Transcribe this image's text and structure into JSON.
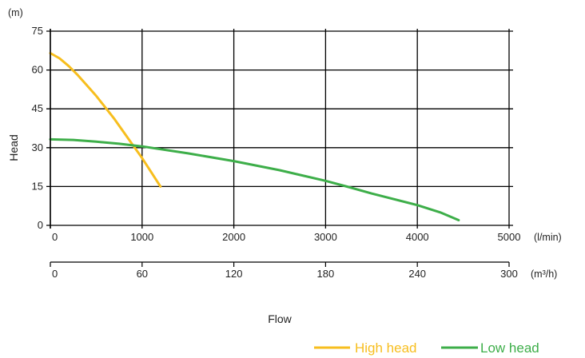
{
  "chart_data": {
    "type": "line",
    "ylabel": "Head",
    "y_unit": "(m)",
    "xlabel": "Flow",
    "ylim": [
      0,
      75
    ],
    "y_ticks": [
      "0",
      "15",
      "30",
      "45",
      "60",
      "75"
    ],
    "xlim": [
      0,
      5000
    ],
    "x_ticks": [
      "0",
      "1000",
      "2000",
      "3000",
      "4000",
      "5000"
    ],
    "x_unit": "(l/min)",
    "x2lim": [
      0,
      300
    ],
    "x2_ticks": [
      "0",
      "60",
      "120",
      "180",
      "240",
      "300"
    ],
    "x2_unit": "(m³/h)",
    "grid": true,
    "legend_position": "bottom-right",
    "series": [
      {
        "name": "High head",
        "color": "#F7BE1E",
        "x": [
          0,
          100,
          200,
          300,
          400,
          500,
          600,
          700,
          800,
          900,
          1000,
          1100,
          1200
        ],
        "y": [
          66.5,
          64.5,
          61.5,
          58,
          54,
          50,
          45.5,
          41,
          36,
          31,
          26,
          20.5,
          15
        ]
      },
      {
        "name": "Low head",
        "color": "#3DAE49",
        "x": [
          0,
          250,
          500,
          750,
          1000,
          1500,
          2000,
          2500,
          3000,
          3250,
          3500,
          4000,
          4250,
          4450
        ],
        "y": [
          33.2,
          33,
          32.3,
          31.5,
          30.5,
          27.8,
          24.8,
          21.3,
          17.2,
          14.8,
          12.3,
          7.8,
          5,
          2
        ]
      }
    ]
  }
}
